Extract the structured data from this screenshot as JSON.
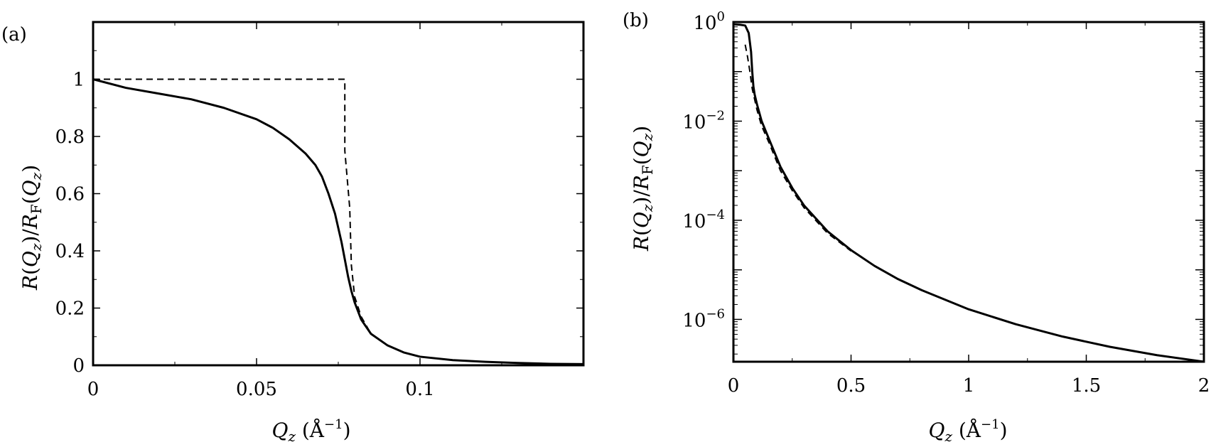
{
  "chart_data": [
    {
      "type": "line",
      "panel_label": "(a)",
      "xlabel": {
        "main": "Q",
        "sub": "z",
        "unit": " (Å",
        "unit_sup": "−1",
        "unit_close": ")"
      },
      "ylabel": {
        "num": "R",
        "num_sub": "z",
        "den": "R",
        "den_sub": "F",
        "den_arg_sub": "z"
      },
      "xlim": [
        0,
        0.15
      ],
      "ylim": [
        0,
        1.2
      ],
      "x_ticks": [
        0,
        0.05,
        0.1
      ],
      "x_tick_labels": [
        "0",
        "0.05",
        "0.1"
      ],
      "y_ticks": [
        0,
        0.2,
        0.4,
        0.6,
        0.8,
        1
      ],
      "y_tick_labels": [
        "0",
        "0.2",
        "0.4",
        "0.6",
        "0.8",
        "1"
      ],
      "grid": false,
      "series": [
        {
          "style": "solid",
          "color": "#000000",
          "x": [
            0,
            0.01,
            0.02,
            0.03,
            0.04,
            0.05,
            0.055,
            0.06,
            0.065,
            0.068,
            0.07,
            0.072,
            0.074,
            0.075,
            0.076,
            0.077,
            0.078,
            0.079,
            0.08,
            0.082,
            0.085,
            0.09,
            0.095,
            0.1,
            0.11,
            0.12,
            0.13,
            0.14,
            0.15
          ],
          "y": [
            1.0,
            0.97,
            0.95,
            0.93,
            0.9,
            0.86,
            0.83,
            0.79,
            0.74,
            0.7,
            0.66,
            0.6,
            0.53,
            0.48,
            0.43,
            0.37,
            0.31,
            0.26,
            0.22,
            0.16,
            0.11,
            0.07,
            0.045,
            0.03,
            0.018,
            0.012,
            0.008,
            0.005,
            0.004
          ]
        },
        {
          "style": "dashed",
          "color": "#000000",
          "x": [
            0,
            0.077,
            0.077,
            0.0785,
            0.079,
            0.08,
            0.082,
            0.085,
            0.09,
            0.095,
            0.1,
            0.11,
            0.12,
            0.13,
            0.14,
            0.15
          ],
          "y": [
            1.0,
            1.0,
            0.75,
            0.55,
            0.35,
            0.24,
            0.17,
            0.11,
            0.07,
            0.045,
            0.03,
            0.018,
            0.012,
            0.008,
            0.005,
            0.004
          ]
        }
      ]
    },
    {
      "type": "line",
      "panel_label": "(b)",
      "xlabel": {
        "main": "Q",
        "sub": "z",
        "unit": " (Å",
        "unit_sup": "−1",
        "unit_close": ")"
      },
      "ylabel": {
        "num": "R",
        "num_sub": "z",
        "den": "R",
        "den_sub": "F",
        "den_arg_sub": "z"
      },
      "xlim": [
        0,
        2
      ],
      "ylim": [
        1.4e-07,
        1
      ],
      "yscale": "log",
      "x_ticks": [
        0,
        0.5,
        1,
        1.5,
        2
      ],
      "x_tick_labels": [
        "0",
        "0.5",
        "1",
        "1.5",
        "2"
      ],
      "y_ticks": [
        1,
        0.01,
        0.0001,
        1e-06
      ],
      "y_tick_base": [
        "10",
        "10",
        "10",
        "10"
      ],
      "y_tick_exp": [
        "0",
        "−2",
        "−4",
        "−6"
      ],
      "grid": false,
      "series": [
        {
          "style": "solid",
          "color": "#000000",
          "x": [
            0,
            0.03,
            0.05,
            0.065,
            0.075,
            0.08,
            0.085,
            0.09,
            0.1,
            0.12,
            0.15,
            0.2,
            0.25,
            0.3,
            0.4,
            0.5,
            0.6,
            0.7,
            0.8,
            1.0,
            1.2,
            1.4,
            1.6,
            1.8,
            2.0
          ],
          "y": [
            0.9,
            0.88,
            0.85,
            0.6,
            0.25,
            0.1,
            0.05,
            0.035,
            0.022,
            0.01,
            0.0045,
            0.0012,
            0.00045,
            0.0002,
            6e-05,
            2.5e-05,
            1.2e-05,
            6.5e-06,
            3.9e-06,
            1.6e-06,
            8e-07,
            4.5e-07,
            2.8e-07,
            1.9e-07,
            1.4e-07
          ]
        },
        {
          "style": "dashed",
          "color": "#000000",
          "x": [
            0.05,
            0.06,
            0.07,
            0.08,
            0.1,
            0.12,
            0.15,
            0.2,
            0.25,
            0.3,
            0.4,
            0.5
          ],
          "y": [
            0.35,
            0.2,
            0.1,
            0.045,
            0.017,
            0.008,
            0.0038,
            0.001,
            0.0004,
            0.00018,
            5.5e-05,
            2.4e-05
          ]
        }
      ]
    }
  ]
}
